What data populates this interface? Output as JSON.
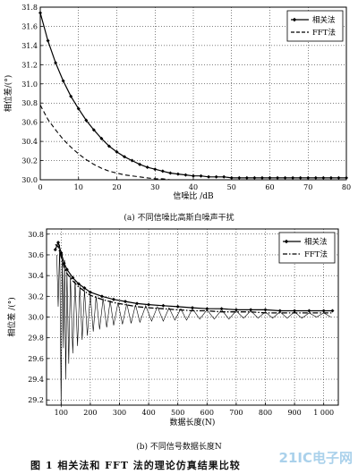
{
  "figure_caption": "图 1   相关法和 FFT 法的理论仿真结果比较",
  "watermark": "21IC电子网",
  "chart_data": [
    {
      "type": "line",
      "caption": "(a) 不同信噪比高斯白噪声干扰",
      "xlabel": "信噪比 /dB",
      "ylabel": "相位差/(°)",
      "xlim": [
        0,
        80
      ],
      "ylim": [
        30.0,
        31.8
      ],
      "xticks": [
        "0",
        "10",
        "20",
        "30",
        "40",
        "50",
        "60",
        "70",
        "80"
      ],
      "yticks": [
        "30.0",
        "30.2",
        "30.4",
        "30.6",
        "30.8",
        "31.0",
        "31.2",
        "31.4",
        "31.6",
        "31.8"
      ],
      "grid": true,
      "legend_position": "top-right",
      "series": [
        {
          "name": "相关法",
          "style": "solid-diamond",
          "x": [
            0,
            2,
            4,
            6,
            8,
            10,
            12,
            14,
            16,
            18,
            20,
            22,
            24,
            26,
            28,
            30,
            32,
            34,
            36,
            38,
            40,
            42,
            44,
            46,
            48,
            50,
            52,
            54,
            56,
            58,
            60,
            62,
            64,
            66,
            68,
            70,
            72,
            74,
            76,
            78,
            80
          ],
          "y": [
            31.74,
            31.45,
            31.22,
            31.03,
            30.87,
            30.74,
            30.62,
            30.52,
            30.43,
            30.35,
            30.29,
            30.24,
            30.2,
            30.16,
            30.13,
            30.11,
            30.09,
            30.07,
            30.06,
            30.05,
            30.04,
            30.04,
            30.03,
            30.03,
            30.03,
            30.02,
            30.02,
            30.02,
            30.02,
            30.02,
            30.02,
            30.02,
            30.02,
            30.02,
            30.02,
            30.02,
            30.02,
            30.02,
            30.02,
            30.02,
            30.02
          ]
        },
        {
          "name": "FFT法",
          "style": "dashed",
          "x": [
            0,
            2,
            4,
            6,
            8,
            10,
            12,
            14,
            16,
            18,
            20,
            22,
            24,
            26,
            28,
            30,
            32,
            34,
            36,
            38,
            40,
            42,
            44,
            46,
            48,
            50,
            52,
            54,
            56,
            58,
            60,
            62,
            64,
            66,
            68,
            70,
            72,
            74,
            76,
            78,
            80
          ],
          "y": [
            30.78,
            30.63,
            30.52,
            30.42,
            30.34,
            30.27,
            30.21,
            30.16,
            30.12,
            30.09,
            30.07,
            30.05,
            30.04,
            30.03,
            30.02,
            30.01,
            30.01,
            30.0,
            30.0,
            30.0,
            30.0,
            30.0,
            30.0,
            30.0,
            30.0,
            30.0,
            30.0,
            30.0,
            30.0,
            30.0,
            30.0,
            30.0,
            30.0,
            30.0,
            30.0,
            30.0,
            30.0,
            30.0,
            30.0,
            30.0,
            30.0
          ]
        }
      ]
    },
    {
      "type": "line",
      "caption": "(b) 不同信号数据长度N",
      "xlabel": "数据长度(N)",
      "ylabel": "相位差 /(°)",
      "xlim": [
        50,
        1050
      ],
      "ylim": [
        29.15,
        30.85
      ],
      "xticks": [
        "100",
        "200",
        "300",
        "400",
        "500",
        "600",
        "700",
        "800",
        "900",
        "1 000"
      ],
      "yticks": [
        "29.2",
        "29.4",
        "29.6",
        "29.8",
        "30.0",
        "30.2",
        "30.4",
        "30.6",
        "30.8"
      ],
      "grid": true,
      "legend_position": "top-right",
      "series": [
        {
          "name": "相关法",
          "style": "solid-diamond",
          "x": [
            80,
            90,
            100,
            110,
            120,
            140,
            160,
            180,
            200,
            240,
            280,
            320,
            360,
            400,
            450,
            500,
            550,
            600,
            650,
            700,
            750,
            800,
            850,
            900,
            950,
            1000,
            1030
          ],
          "y": [
            30.65,
            30.72,
            30.62,
            30.52,
            30.46,
            30.38,
            30.32,
            30.28,
            30.24,
            30.2,
            30.17,
            30.15,
            30.13,
            30.12,
            30.11,
            30.1,
            30.09,
            30.08,
            30.08,
            30.07,
            30.07,
            30.07,
            30.06,
            30.06,
            30.06,
            30.06,
            30.06
          ]
        },
        {
          "name": "FFT法",
          "style": "dash-dot",
          "x": [
            80,
            90,
            100,
            110,
            120,
            140,
            160,
            180,
            200,
            240,
            280,
            320,
            360,
            400,
            450,
            500,
            550,
            600,
            650,
            700,
            750,
            800,
            850,
            900,
            950,
            1000,
            1030
          ],
          "y": [
            30.7,
            30.68,
            30.58,
            30.48,
            30.42,
            30.35,
            30.29,
            30.25,
            30.21,
            30.17,
            30.14,
            30.12,
            30.1,
            30.09,
            30.08,
            30.07,
            30.06,
            30.06,
            30.05,
            30.05,
            30.05,
            30.04,
            30.04,
            30.04,
            30.04,
            30.04,
            30.04
          ]
        },
        {
          "name": "",
          "style": "thin-oscillation",
          "x": [
            85,
            90,
            95,
            100,
            104,
            108,
            112,
            116,
            120,
            126,
            132,
            140,
            148,
            156,
            164,
            172,
            180,
            190,
            200,
            210,
            220,
            232,
            244,
            256,
            268,
            280,
            295,
            310,
            325,
            340,
            355,
            370,
            390,
            410,
            430,
            450,
            470,
            490,
            510,
            530,
            550,
            575,
            600,
            625,
            650,
            675,
            700,
            725,
            750,
            775,
            800,
            825,
            850,
            875,
            900,
            925,
            950,
            975,
            1000,
            1025
          ],
          "y": [
            30.6,
            30.1,
            30.7,
            29.13,
            30.62,
            29.7,
            30.55,
            29.4,
            30.45,
            29.55,
            30.4,
            29.65,
            30.35,
            29.72,
            30.3,
            29.78,
            30.26,
            29.82,
            30.22,
            29.86,
            30.2,
            29.88,
            30.18,
            29.9,
            30.16,
            29.92,
            30.14,
            29.93,
            30.13,
            29.94,
            30.12,
            29.95,
            30.11,
            29.96,
            30.1,
            29.96,
            30.09,
            29.97,
            30.08,
            29.97,
            30.08,
            29.98,
            30.07,
            29.98,
            30.07,
            29.98,
            30.06,
            29.99,
            30.06,
            29.99,
            30.05,
            29.99,
            30.05,
            29.99,
            30.05,
            29.99,
            30.04,
            30.0,
            30.04,
            30.0
          ]
        }
      ]
    }
  ]
}
